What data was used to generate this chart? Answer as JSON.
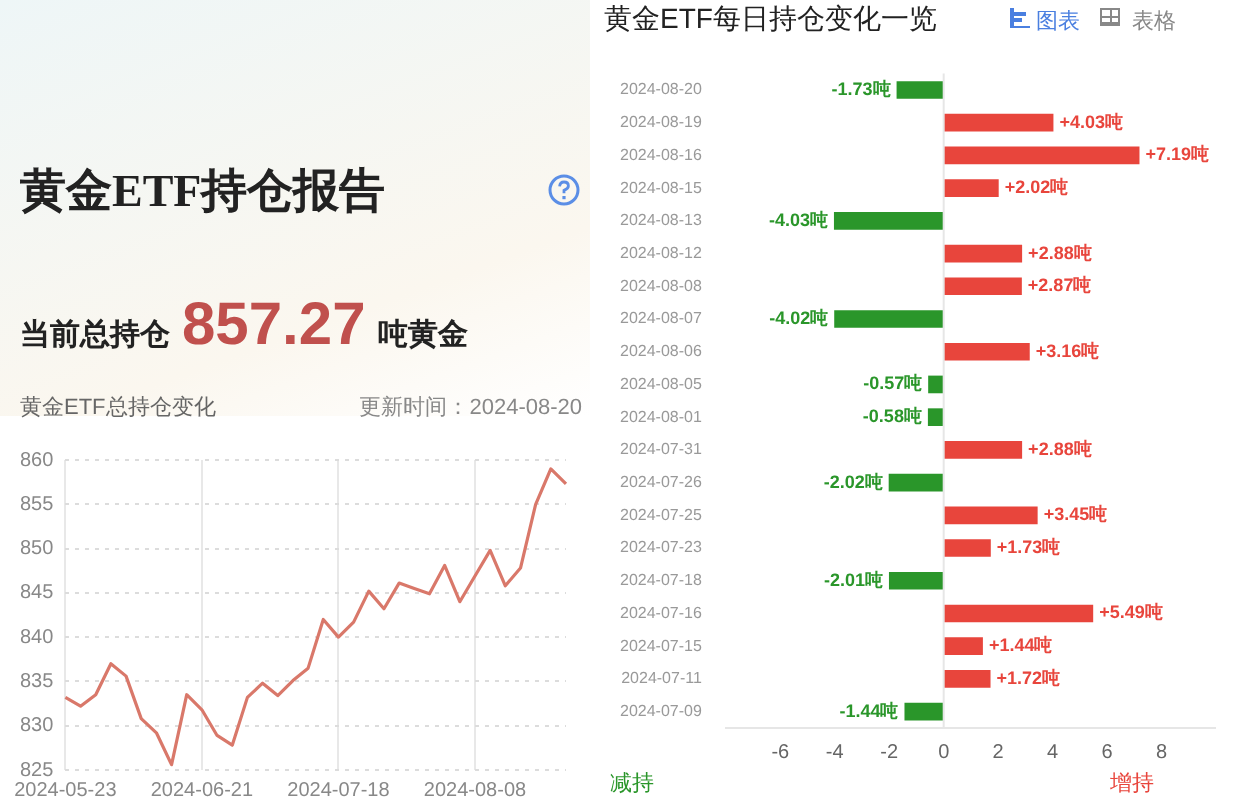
{
  "chart_data": [
    {
      "type": "other",
      "title": "黄金ETF持仓报告",
      "annotations": [
        "当前总持仓",
        "857.27",
        "吨黄金"
      ]
    },
    {
      "type": "line",
      "title": "黄金ETF总持仓变化",
      "annotations": [
        "更新时间：2024-08-20"
      ],
      "categories": [
        "2024-05-23",
        null,
        null,
        null,
        null,
        null,
        null,
        null,
        null,
        "2024-06-21",
        null,
        null,
        null,
        null,
        null,
        null,
        null,
        null,
        "2024-07-18",
        null,
        null,
        null,
        null,
        null,
        null,
        null,
        null,
        "2024-08-08",
        null,
        null,
        null,
        null,
        null,
        null
      ],
      "series": [
        {
          "color": "#d9786a",
          "values": [
            833.2,
            832.2,
            833.5,
            837.0,
            835.6,
            830.8,
            829.2,
            825.6,
            833.5,
            831.8,
            828.9,
            827.8,
            833.2,
            834.8,
            833.4,
            835.1,
            836.5,
            842.0,
            840.0,
            841.7,
            845.2,
            843.2,
            846.1,
            845.5,
            844.9,
            848.1,
            844.0,
            846.9,
            849.8,
            845.8,
            847.8,
            855.0,
            859.0,
            857.3
          ]
        }
      ],
      "ylim": [
        825,
        860
      ],
      "yticks": [
        825,
        830,
        835,
        840,
        845,
        850,
        855,
        860
      ],
      "grid": true
    },
    {
      "type": "bar",
      "orientation": "horizontal",
      "title": "黄金ETF每日持仓变化一览",
      "annotations": [
        "图表",
        "表格",
        "减持",
        "增持"
      ],
      "categories": [
        "2024-08-20",
        "2024-08-19",
        "2024-08-16",
        "2024-08-15",
        "2024-08-13",
        "2024-08-12",
        "2024-08-08",
        "2024-08-07",
        "2024-08-06",
        "2024-08-05",
        "2024-08-01",
        "2024-07-31",
        "2024-07-26",
        "2024-07-25",
        "2024-07-23",
        "2024-07-18",
        "2024-07-16",
        "2024-07-15",
        "2024-07-11",
        "2024-07-09"
      ],
      "values": [
        -1.73,
        4.03,
        7.19,
        2.02,
        -4.03,
        2.88,
        2.87,
        -4.02,
        3.16,
        -0.57,
        -0.58,
        2.88,
        -2.02,
        3.45,
        1.73,
        -2.01,
        5.49,
        1.44,
        1.72,
        -1.44
      ],
      "value_labels": [
        "-1.73吨",
        "+4.03吨",
        "+7.19吨",
        "+2.02吨",
        "-4.03吨",
        "+2.88吨",
        "+2.87吨",
        "-4.02吨",
        "+3.16吨",
        "-0.57吨",
        "-0.58吨",
        "+2.88吨",
        "-2.02吨",
        "+3.45吨",
        "+1.73吨",
        "-2.01吨",
        "+5.49吨",
        "+1.44吨",
        "+1.72吨",
        "-1.44吨"
      ],
      "colors": [
        "#2a962a",
        "#e8453c",
        "#e8453c",
        "#e8453c",
        "#2a962a",
        "#e8453c",
        "#e8453c",
        "#2a962a",
        "#e8453c",
        "#2a962a",
        "#2a962a",
        "#e8453c",
        "#2a962a",
        "#e8453c",
        "#e8453c",
        "#2a962a",
        "#e8453c",
        "#e8453c",
        "#e8453c",
        "#2a962a"
      ],
      "xlim": [
        -8,
        10
      ],
      "xticks": [
        -6,
        -4,
        -2,
        0,
        2,
        4,
        6,
        8
      ],
      "ref_lines": [
        {
          "axis": "x",
          "value": 0,
          "color": "#e6e6e6"
        }
      ]
    }
  ]
}
